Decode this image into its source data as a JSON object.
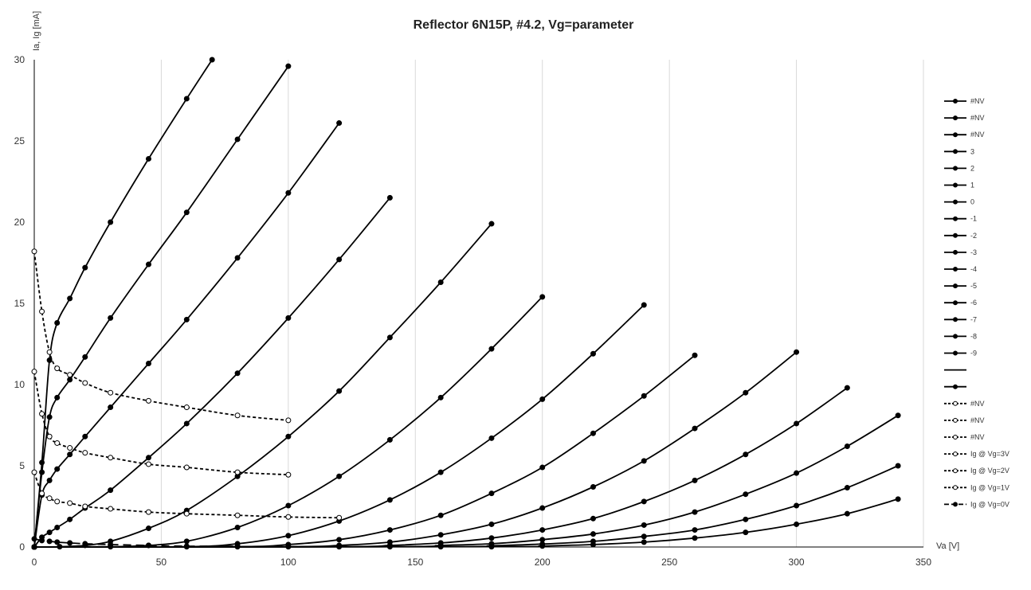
{
  "chart_data": {
    "type": "line",
    "title": "Reflector 6N15P, #4.2, Vg=parameter",
    "xlabel": "Va [V]",
    "ylabel": "Ia, Ig [mA]",
    "xlim": [
      0,
      350
    ],
    "ylim": [
      0,
      30
    ],
    "xticks": [
      0,
      50,
      100,
      150,
      200,
      250,
      300,
      350
    ],
    "yticks": [
      0,
      5,
      10,
      15,
      20,
      25,
      30
    ],
    "grid": "vertical",
    "legend_position": "right",
    "series": [
      {
        "name": "#NV",
        "style": "solid-filled",
        "points": []
      },
      {
        "name": "#NV",
        "style": "solid-filled",
        "points": []
      },
      {
        "name": "#NV",
        "style": "solid-filled",
        "points": []
      },
      {
        "name": "3",
        "style": "solid-filled",
        "points": [
          [
            0,
            0
          ],
          [
            3,
            5.2
          ],
          [
            6,
            11.5
          ],
          [
            9,
            13.8
          ],
          [
            14,
            15.3
          ],
          [
            20,
            17.2
          ],
          [
            30,
            20
          ],
          [
            45,
            23.9
          ],
          [
            60,
            27.6
          ],
          [
            70,
            30
          ]
        ]
      },
      {
        "name": "2",
        "style": "solid-filled",
        "points": [
          [
            0,
            0
          ],
          [
            3,
            4.6
          ],
          [
            6,
            8
          ],
          [
            9,
            9.2
          ],
          [
            14,
            10.3
          ],
          [
            20,
            11.7
          ],
          [
            30,
            14.1
          ],
          [
            45,
            17.4
          ],
          [
            60,
            20.6
          ],
          [
            80,
            25.1
          ],
          [
            100,
            29.6
          ]
        ]
      },
      {
        "name": "1",
        "style": "solid-filled",
        "points": [
          [
            0,
            0
          ],
          [
            3,
            3.2
          ],
          [
            6,
            4.1
          ],
          [
            9,
            4.8
          ],
          [
            14,
            5.7
          ],
          [
            20,
            6.8
          ],
          [
            30,
            8.6
          ],
          [
            45,
            11.3
          ],
          [
            60,
            14
          ],
          [
            80,
            17.8
          ],
          [
            100,
            21.8
          ],
          [
            120,
            26.1
          ]
        ]
      },
      {
        "name": "0",
        "style": "solid-filled",
        "points": [
          [
            0,
            0
          ],
          [
            3,
            0.6
          ],
          [
            6,
            0.9
          ],
          [
            9,
            1.2
          ],
          [
            14,
            1.7
          ],
          [
            20,
            2.4
          ],
          [
            30,
            3.5
          ],
          [
            45,
            5.5
          ],
          [
            60,
            7.6
          ],
          [
            80,
            10.7
          ],
          [
            100,
            14.1
          ],
          [
            120,
            17.7
          ],
          [
            140,
            21.5
          ]
        ]
      },
      {
        "name": "-1",
        "style": "solid-filled",
        "points": [
          [
            0,
            0
          ],
          [
            10,
            0.02
          ],
          [
            20,
            0.1
          ],
          [
            30,
            0.35
          ],
          [
            45,
            1.15
          ],
          [
            60,
            2.25
          ],
          [
            80,
            4.35
          ],
          [
            100,
            6.8
          ],
          [
            120,
            9.6
          ],
          [
            140,
            12.9
          ],
          [
            160,
            16.3
          ],
          [
            180,
            19.9
          ]
        ]
      },
      {
        "name": "-2",
        "style": "solid-filled",
        "points": [
          [
            0,
            0
          ],
          [
            30,
            0.02
          ],
          [
            45,
            0.1
          ],
          [
            60,
            0.35
          ],
          [
            80,
            1.2
          ],
          [
            100,
            2.55
          ],
          [
            120,
            4.35
          ],
          [
            140,
            6.6
          ],
          [
            160,
            9.2
          ],
          [
            180,
            12.2
          ],
          [
            200,
            15.4
          ]
        ]
      },
      {
        "name": "-3",
        "style": "solid-filled",
        "points": [
          [
            0,
            0
          ],
          [
            60,
            0.02
          ],
          [
            80,
            0.2
          ],
          [
            100,
            0.7
          ],
          [
            120,
            1.6
          ],
          [
            140,
            2.9
          ],
          [
            160,
            4.6
          ],
          [
            180,
            6.7
          ],
          [
            200,
            9.1
          ],
          [
            220,
            11.9
          ],
          [
            240,
            14.9
          ]
        ]
      },
      {
        "name": "-4",
        "style": "solid-filled",
        "points": [
          [
            0,
            0
          ],
          [
            80,
            0.02
          ],
          [
            100,
            0.15
          ],
          [
            120,
            0.45
          ],
          [
            140,
            1.05
          ],
          [
            160,
            1.95
          ],
          [
            180,
            3.3
          ],
          [
            200,
            4.9
          ],
          [
            220,
            7
          ],
          [
            240,
            9.3
          ],
          [
            260,
            11.8
          ]
        ]
      },
      {
        "name": "-5",
        "style": "solid-filled",
        "points": [
          [
            0,
            0
          ],
          [
            100,
            0.02
          ],
          [
            120,
            0.1
          ],
          [
            140,
            0.3
          ],
          [
            160,
            0.75
          ],
          [
            180,
            1.4
          ],
          [
            200,
            2.4
          ],
          [
            220,
            3.7
          ],
          [
            240,
            5.3
          ],
          [
            260,
            7.3
          ],
          [
            280,
            9.5
          ],
          [
            300,
            12
          ]
        ]
      },
      {
        "name": "-6",
        "style": "solid-filled",
        "points": [
          [
            0,
            0
          ],
          [
            120,
            0.02
          ],
          [
            140,
            0.1
          ],
          [
            160,
            0.25
          ],
          [
            180,
            0.55
          ],
          [
            200,
            1.05
          ],
          [
            220,
            1.75
          ],
          [
            240,
            2.8
          ],
          [
            260,
            4.1
          ],
          [
            280,
            5.7
          ],
          [
            300,
            7.6
          ],
          [
            320,
            9.8
          ]
        ]
      },
      {
        "name": "-7",
        "style": "solid-filled",
        "points": [
          [
            0,
            0
          ],
          [
            140,
            0.02
          ],
          [
            160,
            0.1
          ],
          [
            180,
            0.2
          ],
          [
            200,
            0.45
          ],
          [
            220,
            0.8
          ],
          [
            240,
            1.35
          ],
          [
            260,
            2.15
          ],
          [
            280,
            3.25
          ],
          [
            300,
            4.55
          ],
          [
            320,
            6.2
          ],
          [
            340,
            8.1
          ]
        ]
      },
      {
        "name": "-8",
        "style": "solid-filled",
        "points": [
          [
            0,
            0
          ],
          [
            160,
            0.02
          ],
          [
            180,
            0.08
          ],
          [
            200,
            0.18
          ],
          [
            220,
            0.35
          ],
          [
            240,
            0.65
          ],
          [
            260,
            1.05
          ],
          [
            280,
            1.7
          ],
          [
            300,
            2.55
          ],
          [
            320,
            3.65
          ],
          [
            340,
            5
          ]
        ]
      },
      {
        "name": "-9",
        "style": "solid-filled",
        "points": [
          [
            0,
            0
          ],
          [
            180,
            0.02
          ],
          [
            200,
            0.06
          ],
          [
            220,
            0.15
          ],
          [
            240,
            0.3
          ],
          [
            260,
            0.55
          ],
          [
            280,
            0.9
          ],
          [
            300,
            1.4
          ],
          [
            320,
            2.05
          ],
          [
            340,
            2.95
          ]
        ]
      },
      {
        "name": "",
        "style": "solid-none",
        "points": []
      },
      {
        "name": "",
        "style": "solid-filled",
        "points": []
      },
      {
        "name": "#NV",
        "style": "dash-open",
        "points": []
      },
      {
        "name": "#NV",
        "style": "dash-open",
        "points": []
      },
      {
        "name": "#NV",
        "style": "dash-open",
        "points": []
      },
      {
        "name": "Ig @ Vg=3V",
        "style": "dash-open",
        "points": [
          [
            0,
            18.2
          ],
          [
            3,
            14.5
          ],
          [
            6,
            12
          ],
          [
            9,
            11
          ],
          [
            14,
            10.6
          ],
          [
            20,
            10.1
          ],
          [
            30,
            9.5
          ],
          [
            45,
            9
          ],
          [
            60,
            8.6
          ],
          [
            80,
            8.1
          ],
          [
            100,
            7.8
          ]
        ]
      },
      {
        "name": "Ig @ Vg=2V",
        "style": "dash-open",
        "points": [
          [
            0,
            10.8
          ],
          [
            3,
            8.2
          ],
          [
            6,
            6.8
          ],
          [
            9,
            6.4
          ],
          [
            14,
            6.1
          ],
          [
            20,
            5.8
          ],
          [
            30,
            5.5
          ],
          [
            45,
            5.1
          ],
          [
            60,
            4.9
          ],
          [
            80,
            4.6
          ],
          [
            100,
            4.45
          ]
        ]
      },
      {
        "name": "Ig @ Vg=1V",
        "style": "dash-open",
        "points": [
          [
            0,
            4.6
          ],
          [
            3,
            3.3
          ],
          [
            6,
            3
          ],
          [
            9,
            2.8
          ],
          [
            14,
            2.7
          ],
          [
            20,
            2.5
          ],
          [
            30,
            2.35
          ],
          [
            45,
            2.15
          ],
          [
            60,
            2.05
          ],
          [
            80,
            1.95
          ],
          [
            100,
            1.85
          ],
          [
            120,
            1.8
          ]
        ]
      },
      {
        "name": "Ig @ Vg=0V",
        "style": "longdash-filled",
        "points": [
          [
            0,
            0.5
          ],
          [
            3,
            0.4
          ],
          [
            6,
            0.35
          ],
          [
            9,
            0.3
          ],
          [
            14,
            0.25
          ],
          [
            20,
            0.2
          ],
          [
            30,
            0.15
          ],
          [
            45,
            0.1
          ],
          [
            60,
            0.05
          ],
          [
            80,
            0.05
          ]
        ]
      }
    ]
  }
}
